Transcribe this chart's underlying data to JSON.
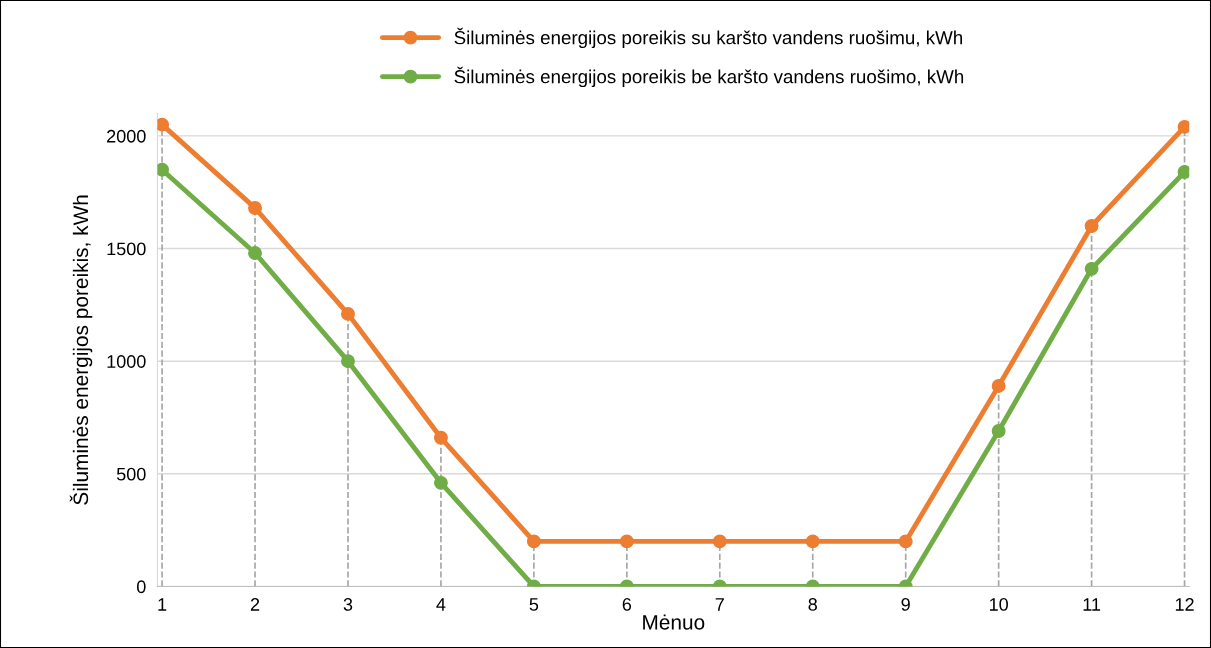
{
  "chart_data": {
    "type": "line",
    "xlabel": "Mėnuo",
    "ylabel": "Šiluminės energijos poreikis, kWh",
    "categories": [
      "1",
      "2",
      "3",
      "4",
      "5",
      "6",
      "7",
      "8",
      "9",
      "10",
      "11",
      "12"
    ],
    "series": [
      {
        "name": "Šiluminės energijos poreikis su karšto vandens ruošimu, kWh",
        "color": "#ed7d31",
        "values": [
          2050,
          1680,
          1210,
          660,
          200,
          200,
          200,
          200,
          200,
          890,
          1600,
          2040
        ]
      },
      {
        "name": "Šiluminės energijos poreikis be karšto vandens ruošimo, kWh",
        "color": "#70ad47",
        "values": [
          1850,
          1480,
          1000,
          460,
          0,
          0,
          0,
          0,
          0,
          690,
          1410,
          1840
        ]
      }
    ],
    "ref_lines": [
      {
        "axis": "x",
        "value": "1",
        "color": "#a6a6a6",
        "line_style": "dashed"
      },
      {
        "axis": "x",
        "value": "2",
        "color": "#a6a6a6",
        "line_style": "dashed"
      },
      {
        "axis": "x",
        "value": "3",
        "color": "#a6a6a6",
        "line_style": "dashed"
      },
      {
        "axis": "x",
        "value": "4",
        "color": "#a6a6a6",
        "line_style": "dashed"
      },
      {
        "axis": "x",
        "value": "5",
        "color": "#a6a6a6",
        "line_style": "dashed"
      },
      {
        "axis": "x",
        "value": "6",
        "color": "#a6a6a6",
        "line_style": "dashed"
      },
      {
        "axis": "x",
        "value": "7",
        "color": "#a6a6a6",
        "line_style": "dashed"
      },
      {
        "axis": "x",
        "value": "8",
        "color": "#a6a6a6",
        "line_style": "dashed"
      },
      {
        "axis": "x",
        "value": "9",
        "color": "#a6a6a6",
        "line_style": "dashed"
      },
      {
        "axis": "x",
        "value": "10",
        "color": "#a6a6a6",
        "line_style": "dashed"
      },
      {
        "axis": "x",
        "value": "11",
        "color": "#a6a6a6",
        "line_style": "dashed"
      },
      {
        "axis": "x",
        "value": "12",
        "color": "#a6a6a6",
        "line_style": "dashed"
      }
    ],
    "ylim": [
      0,
      2100
    ],
    "yticks": [
      0,
      500,
      1000,
      1500,
      2000
    ],
    "grid": "y",
    "legend": "top",
    "marker": "circle",
    "line_style": "solid"
  }
}
